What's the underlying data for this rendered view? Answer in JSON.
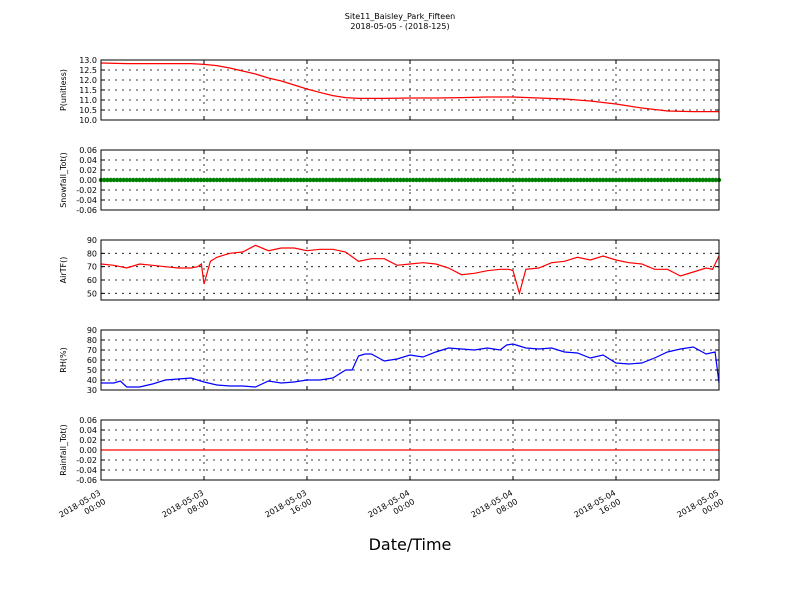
{
  "title": {
    "line1": "Site11_Baisley_Park_Fifteen",
    "line2": "2018-05-05 - (2018-125)"
  },
  "xlabel": "Date/Time",
  "x_ticks": [
    {
      "line1": "2018-05-03",
      "line2": "00:00"
    },
    {
      "line1": "2018-05-03",
      "line2": "08:00"
    },
    {
      "line1": "2018-05-03",
      "line2": "16:00"
    },
    {
      "line1": "2018-05-04",
      "line2": "00:00"
    },
    {
      "line1": "2018-05-04",
      "line2": "08:00"
    },
    {
      "line1": "2018-05-04",
      "line2": "16:00"
    },
    {
      "line1": "2018-05-05",
      "line2": "00:00"
    }
  ],
  "chart_data": [
    {
      "type": "line",
      "ylabel": "P(unitless)",
      "ylim": [
        10.0,
        13.0
      ],
      "yticks": [
        "10.0",
        "10.5",
        "11.0",
        "11.5",
        "12.0",
        "12.5",
        "13.0"
      ],
      "color": "#ff0000",
      "x_hours": [
        0,
        2,
        4,
        6,
        7,
        8,
        9,
        10,
        11,
        12,
        13,
        14,
        15,
        16,
        17,
        18,
        19,
        20,
        22,
        24,
        26,
        28,
        30,
        32,
        34,
        36,
        38,
        40,
        42,
        44,
        46,
        48
      ],
      "values": [
        12.85,
        12.82,
        12.82,
        12.82,
        12.82,
        12.78,
        12.72,
        12.6,
        12.45,
        12.3,
        12.1,
        11.95,
        11.75,
        11.55,
        11.38,
        11.22,
        11.12,
        11.08,
        11.08,
        11.1,
        11.1,
        11.12,
        11.15,
        11.15,
        11.1,
        11.05,
        10.95,
        10.8,
        10.6,
        10.45,
        10.42,
        10.42
      ]
    },
    {
      "type": "scatter",
      "ylabel": "Snowfall_Tot()",
      "ylim": [
        -0.06,
        0.06
      ],
      "yticks": [
        "-0.06",
        "-0.04",
        "-0.02",
        "0.00",
        "0.02",
        "0.04",
        "0.06"
      ],
      "color": "#008000",
      "constant": 0.0,
      "interval_hours": 0.25
    },
    {
      "type": "line",
      "ylabel": "AirTF()",
      "ylim": [
        45,
        90
      ],
      "yticks": [
        "50",
        "60",
        "70",
        "80",
        "90"
      ],
      "color": "#ff0000",
      "x_hours": [
        0,
        1,
        2,
        3,
        4,
        5,
        6,
        7,
        7.5,
        7.8,
        8,
        8.5,
        9,
        10,
        11,
        12,
        13,
        14,
        15,
        16,
        17,
        18,
        19,
        20,
        21,
        22,
        23,
        24,
        25,
        26,
        27,
        28,
        29,
        30,
        31,
        31.7,
        32,
        32.5,
        33,
        34,
        35,
        36,
        37,
        38,
        39,
        40,
        41,
        42,
        43,
        44,
        45,
        46,
        47,
        47.5,
        48
      ],
      "values": [
        72,
        71,
        69,
        72,
        71,
        70,
        69,
        69,
        70,
        72,
        57,
        74,
        77,
        80,
        81,
        86,
        82,
        84,
        84,
        82,
        83,
        83,
        81,
        74,
        76,
        76,
        71,
        72,
        73,
        72,
        69,
        64,
        65,
        67,
        68,
        68,
        67,
        50,
        68,
        69,
        73,
        74,
        77,
        75,
        78,
        75,
        73,
        72,
        68,
        68,
        63,
        66,
        69,
        68,
        78
      ]
    },
    {
      "type": "line",
      "ylabel": "RH(%)",
      "ylim": [
        30,
        90
      ],
      "yticks": [
        "30",
        "40",
        "50",
        "60",
        "70",
        "80",
        "90"
      ],
      "color": "#0000ff",
      "x_hours": [
        0,
        1,
        1.5,
        2,
        3,
        4,
        5,
        6,
        7,
        8,
        9,
        10,
        11,
        12,
        13,
        14,
        15,
        16,
        17,
        18,
        19,
        19.5,
        20,
        20.5,
        21,
        22,
        23,
        24,
        25,
        26,
        27,
        28,
        29,
        30,
        31,
        31.5,
        32,
        33,
        34,
        35,
        36,
        37,
        38,
        39,
        40,
        41,
        42,
        43,
        44,
        45,
        46,
        47,
        47.7,
        48
      ],
      "values": [
        37,
        37,
        39,
        33,
        33,
        36,
        40,
        41,
        42,
        38,
        35,
        34,
        34,
        33,
        39,
        37,
        38,
        40,
        40,
        42,
        50,
        50,
        64,
        66,
        66,
        59,
        61,
        65,
        63,
        68,
        72,
        71,
        70,
        72,
        70,
        75,
        76,
        72,
        71,
        72,
        68,
        67,
        62,
        65,
        57,
        56,
        57,
        62,
        68,
        71,
        73,
        66,
        68,
        37
      ]
    },
    {
      "type": "line",
      "ylabel": "Rainfall_Tot()",
      "ylim": [
        -0.06,
        0.06
      ],
      "yticks": [
        "-0.06",
        "-0.04",
        "-0.02",
        "0.00",
        "0.02",
        "0.04",
        "0.06"
      ],
      "color": "#ff0000",
      "x_hours": [
        0,
        48
      ],
      "values": [
        0.0,
        0.0
      ]
    }
  ]
}
